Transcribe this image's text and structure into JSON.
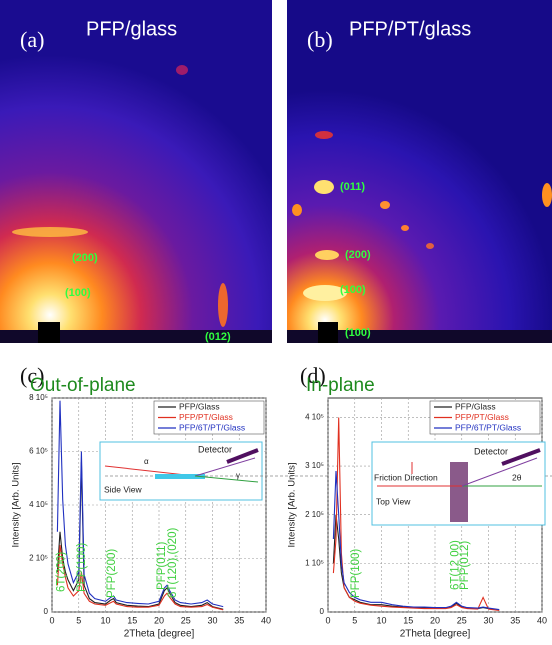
{
  "panels": [
    {
      "label": "(a)",
      "title": "PFP/glass",
      "peaks": [
        "(200)",
        "(100)",
        "(012)"
      ]
    },
    {
      "label": "(b)",
      "title": "PFP/PT/glass",
      "peaks": [
        "(011)",
        "(200)",
        "(100)",
        "(100)"
      ]
    }
  ],
  "chart_data": [
    {
      "type": "line",
      "label": "(c)",
      "title": "Out-of-plane",
      "x_label": "2Theta [degree]",
      "y_label": "Intensity [Arb. Units]",
      "x": [
        1,
        1.5,
        2,
        2.5,
        3,
        4,
        5,
        5.5,
        6,
        7,
        8,
        10,
        11,
        11.5,
        12,
        14,
        16,
        18,
        20,
        21,
        21.5,
        22,
        23,
        24,
        26,
        28,
        29,
        30,
        32
      ],
      "series": [
        {
          "name": "PFP/Glass",
          "color": "#222222",
          "values": [
            150000,
            300000,
            200000,
            150000,
            120000,
            80000,
            120000,
            560000,
            100000,
            50000,
            35000,
            30000,
            45000,
            50000,
            35000,
            25000,
            22000,
            20000,
            30000,
            80000,
            90000,
            70000,
            35000,
            25000,
            20000,
            25000,
            35000,
            20000,
            10000
          ]
        },
        {
          "name": "PFP/PT/Glass",
          "color": "#e03020",
          "values": [
            100000,
            250000,
            180000,
            130000,
            90000,
            60000,
            80000,
            150000,
            70000,
            40000,
            30000,
            25000,
            35000,
            40000,
            30000,
            20000,
            18000,
            18000,
            25000,
            60000,
            70000,
            55000,
            30000,
            20000,
            18000,
            20000,
            28000,
            18000,
            8000
          ]
        },
        {
          "name": "PFP/6T/PT/Glass",
          "color": "#2030c0",
          "values": [
            300000,
            790000,
            420000,
            250000,
            180000,
            110000,
            150000,
            600000,
            140000,
            70000,
            50000,
            40000,
            55000,
            60000,
            45000,
            35000,
            32000,
            30000,
            40000,
            90000,
            100000,
            80000,
            45000,
            35000,
            30000,
            35000,
            45000,
            30000,
            20000
          ]
        }
      ],
      "xlim": [
        0,
        40
      ],
      "xticks": [
        0,
        5,
        10,
        15,
        20,
        25,
        30,
        35,
        40
      ],
      "ylim": [
        0,
        800000
      ],
      "yticks": [
        0,
        {
          "value": 200000,
          "label": "2 10⁵"
        },
        {
          "value": 400000,
          "label": "4 10⁵"
        },
        {
          "value": 600000,
          "label": "6 10⁵"
        },
        {
          "value": 800000,
          "label": "8 10⁵"
        }
      ],
      "grid": true,
      "annotations": [
        "6T(200)",
        "PFP(100)",
        "PFP(200)",
        "PFP(011)",
        "6T(120),(020)"
      ],
      "inset": {
        "detector": "Detector",
        "view": "Side View",
        "angles": [
          "α",
          "γ"
        ]
      }
    },
    {
      "type": "line",
      "label": "(d)",
      "title": "In-plane",
      "x_label": "2Theta [degree]",
      "y_label": "Intensity [Arb. Units]",
      "x": [
        1,
        1.5,
        2,
        2.5,
        3,
        4,
        5,
        6,
        8,
        10,
        12,
        14,
        16,
        18,
        20,
        22,
        23,
        24,
        25,
        26,
        28,
        29,
        30,
        32
      ],
      "series": [
        {
          "name": "PFP/Glass",
          "color": "#222222",
          "values": [
            100000,
            200000,
            150000,
            80000,
            50000,
            30000,
            25000,
            20000,
            15000,
            15000,
            12000,
            10000,
            9000,
            8000,
            8000,
            8000,
            10000,
            18000,
            10000,
            8000,
            7000,
            9000,
            7000,
            4000
          ]
        },
        {
          "name": "PFP/PT/Glass",
          "color": "#e03020",
          "values": [
            80000,
            150000,
            400000,
            120000,
            50000,
            30000,
            22000,
            18000,
            14000,
            12000,
            10000,
            9000,
            8000,
            7000,
            7000,
            7000,
            9000,
            15000,
            9000,
            7000,
            6000,
            30000,
            6000,
            3000
          ]
        },
        {
          "name": "PFP/6T/PT/Glass",
          "color": "#2030c0",
          "values": [
            150000,
            290000,
            200000,
            100000,
            60000,
            40000,
            30000,
            25000,
            20000,
            20000,
            15000,
            12000,
            10000,
            10000,
            9000,
            9000,
            12000,
            20000,
            12000,
            9000,
            8000,
            10000,
            8000,
            5000
          ]
        }
      ],
      "xlim": [
        0,
        40
      ],
      "xticks": [
        0,
        5,
        10,
        15,
        20,
        25,
        30,
        35,
        40
      ],
      "ylim": [
        0,
        440000
      ],
      "yticks": [
        0,
        {
          "value": 100000,
          "label": "1 10⁵"
        },
        {
          "value": 200000,
          "label": "2 10⁵"
        },
        {
          "value": 300000,
          "label": "3 10⁵"
        },
        {
          "value": 400000,
          "label": "4 10⁵"
        }
      ],
      "grid": true,
      "annotations": [
        "PFP(100)",
        "6T(12 00)",
        "PFP(012)"
      ],
      "inset": {
        "detector": "Detector",
        "view": "Top View",
        "direction": "Friction Direction",
        "angles": [
          "2θ"
        ]
      }
    }
  ]
}
